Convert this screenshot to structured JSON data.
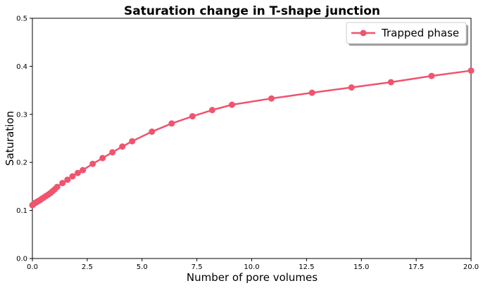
{
  "chart_data": {
    "type": "line",
    "title": "Saturation change in T-shape junction",
    "xlabel": "Number of pore volumes",
    "ylabel": "Saturation",
    "xlim": [
      0,
      20
    ],
    "ylim": [
      0,
      0.5
    ],
    "xticks": [
      "0.0",
      "2.5",
      "5.0",
      "7.5",
      "10.0",
      "12.5",
      "15.0",
      "17.5",
      "20.0"
    ],
    "yticks": [
      "0.0",
      "0.1",
      "0.2",
      "0.3",
      "0.4",
      "0.5"
    ],
    "grid": false,
    "legend": {
      "position": "top-right",
      "label": "Trapped phase"
    },
    "color": "#f0546e",
    "series": [
      {
        "name": "Trapped phase",
        "x": [
          0.0,
          0.05,
          0.1,
          0.18,
          0.25,
          0.33,
          0.42,
          0.52,
          0.62,
          0.72,
          0.82,
          0.92,
          1.02,
          1.13,
          1.37,
          1.6,
          1.83,
          2.07,
          2.3,
          2.75,
          3.2,
          3.65,
          4.1,
          4.55,
          5.45,
          6.35,
          7.3,
          8.2,
          9.1,
          10.9,
          12.75,
          14.55,
          16.35,
          18.2,
          20.0
        ],
        "y": [
          0.111,
          0.113,
          0.115,
          0.117,
          0.119,
          0.121,
          0.124,
          0.127,
          0.13,
          0.133,
          0.136,
          0.14,
          0.144,
          0.149,
          0.157,
          0.164,
          0.171,
          0.178,
          0.184,
          0.197,
          0.209,
          0.221,
          0.233,
          0.244,
          0.264,
          0.281,
          0.296,
          0.309,
          0.32,
          0.333,
          0.345,
          0.356,
          0.367,
          0.38,
          0.391
        ]
      }
    ]
  }
}
